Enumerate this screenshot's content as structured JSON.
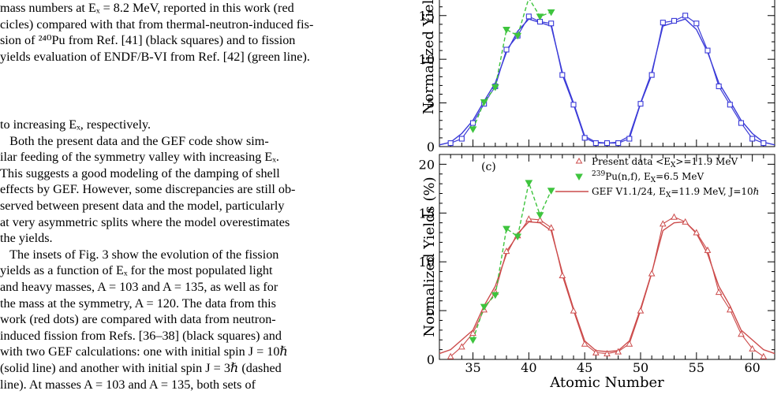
{
  "caption_lines": [
    "mass numbers at Eₓ = 8.2 MeV, reported in this work (red",
    "cicles) compared with that from thermal-neutron-induced fis-",
    "sion of ²⁴⁰Pu from Ref. [41] (black squares) and to fission",
    "yields evaluation of ENDF/B-VI from Ref. [42] (green line)."
  ],
  "body_lines": [
    "to increasing Eₓ, respectively.",
    "   Both the present data and the GEF code show sim-",
    "ilar feeding of the symmetry valley with increasing Eₓ.",
    "This suggests a good modeling of the damping of shell",
    "effects by GEF. However, some discrepancies are still ob-",
    "served between present data and the model, particularly",
    "at very asymmetric splits where the model overestimates",
    "the yields.",
    "   The insets of Fig. 3 show the evolution of the fission",
    "yields as a function of Eₓ for the most populated light",
    "and heavy masses, A = 103 and A = 135, as well as for",
    "the mass at the symmetry, A = 120. The data from this",
    "work (red dots) are compared with data from neutron-",
    "induced fission from Refs. [36–38] (black squares) and",
    "with two GEF calculations: one with initial spin J = 10ℏ",
    "(solid line) and another with initial spin J = 3ℏ (dashed",
    "line).   At masses A = 103 and A = 135, both sets of"
  ],
  "chart_data": [
    {
      "type": "line",
      "panel": "top (cropped)",
      "ylabel": "Normalized Yields",
      "xlim": [
        32,
        62
      ],
      "ylim": [
        0,
        15
      ],
      "yticks": [
        "0",
        "5",
        "10",
        "15"
      ],
      "colors": {
        "data": "#3b3bd8",
        "gef": "#3b3bd8",
        "ref": "#3ec43e"
      },
      "series": [
        {
          "style": "open-squares",
          "x": [
            33,
            34,
            35,
            36,
            37,
            38,
            39,
            40,
            41,
            42,
            43,
            44,
            45,
            46,
            47,
            48,
            49,
            50,
            51,
            52,
            53,
            54,
            55,
            56,
            57,
            58,
            59,
            60,
            61
          ],
          "values": [
            0.4,
            0.9,
            2.7,
            4.9,
            6.9,
            11.1,
            12.7,
            14.9,
            14.3,
            14.1,
            8.2,
            4.8,
            1.0,
            0.4,
            0.4,
            0.4,
            0.9,
            4.9,
            8.2,
            14.2,
            14.4,
            15.0,
            14.1,
            11.0,
            6.9,
            4.8,
            2.7,
            0.9,
            0.4
          ]
        },
        {
          "style": "solid-line",
          "x": [
            32,
            33,
            34,
            35,
            36,
            37,
            38,
            39,
            40,
            41,
            42,
            43,
            44,
            45,
            46,
            47,
            48,
            49,
            50,
            51,
            52,
            53,
            54,
            55,
            56,
            57,
            58,
            59,
            60,
            61,
            62
          ],
          "values": [
            0.2,
            0.5,
            1.5,
            3.0,
            5.2,
            7.3,
            10.8,
            13.2,
            14.6,
            14.2,
            13.8,
            8.5,
            5.0,
            1.2,
            0.5,
            0.4,
            0.5,
            1.2,
            5.0,
            8.5,
            13.8,
            14.2,
            14.6,
            13.4,
            10.8,
            7.3,
            5.2,
            3.0,
            1.5,
            0.5,
            0.2
          ]
        },
        {
          "style": "dashed-triangles",
          "x": [
            35,
            36,
            37,
            38,
            39,
            40,
            41,
            42
          ],
          "values": [
            2.0,
            5.1,
            6.8,
            13.4,
            12.7,
            17.0,
            14.9,
            15.4
          ]
        }
      ]
    },
    {
      "type": "line",
      "panel_label": "(c)",
      "xlabel": "Atomic Number",
      "ylabel": "Normalized Yields (%)",
      "xlim": [
        32,
        62
      ],
      "ylim": [
        0,
        21
      ],
      "xticks": [
        "35",
        "40",
        "45",
        "50",
        "55",
        "60"
      ],
      "yticks": [
        "0",
        "5",
        "10",
        "15",
        "20"
      ],
      "colors": {
        "data": "#cc4b4b",
        "gef": "#cc4b4b",
        "ref": "#3ec43e"
      },
      "legend": [
        {
          "label": "Present data <E",
          "sub": "X",
          "label2": ">=11.9 MeV",
          "marker": "open-triangle"
        },
        {
          "sup": "239",
          "label": "Pu(n,f), E",
          "sub": "X",
          "label2": "=6.5 MeV",
          "marker": "filled-triangle-down"
        },
        {
          "label": "GEF V1.1/24, E",
          "sub": "X",
          "label2": "=11.9 MeV, J=10ℏ",
          "marker": "line"
        }
      ],
      "series": [
        {
          "name": "Present data <EX>=11.9 MeV",
          "style": "open-triangles",
          "x": [
            33,
            34,
            35,
            36,
            37,
            38,
            39,
            40,
            41,
            42,
            43,
            44,
            45,
            46,
            47,
            48,
            49,
            50,
            51,
            52,
            53,
            54,
            55,
            56,
            57,
            58,
            59,
            60,
            61
          ],
          "values": [
            0.3,
            1.3,
            2.7,
            5.1,
            6.9,
            11.1,
            12.7,
            14.4,
            14.3,
            13.5,
            8.6,
            5.0,
            1.6,
            0.7,
            0.6,
            0.8,
            1.6,
            5.0,
            8.8,
            13.9,
            14.6,
            14.1,
            13.0,
            11.2,
            6.9,
            5.1,
            2.6,
            1.1,
            0.3
          ]
        },
        {
          "name": "239Pu(n,f), EX=6.5 MeV",
          "style": "dashed-triangles-down",
          "x": [
            35,
            36,
            37,
            38,
            39,
            40,
            41,
            42
          ],
          "values": [
            2.0,
            5.4,
            6.6,
            13.4,
            12.6,
            18.1,
            14.8,
            17.3
          ]
        },
        {
          "name": "GEF V1.1/24, EX=11.9 MeV, J=10ℏ",
          "style": "solid-line",
          "x": [
            32,
            33,
            34,
            35,
            36,
            37,
            38,
            39,
            40,
            41,
            42,
            43,
            44,
            45,
            46,
            47,
            48,
            49,
            50,
            51,
            52,
            53,
            54,
            55,
            56,
            57,
            58,
            59,
            60,
            61,
            62
          ],
          "values": [
            0.6,
            1.0,
            2.0,
            3.0,
            5.5,
            7.5,
            10.8,
            12.9,
            14.1,
            14.0,
            13.2,
            8.9,
            5.2,
            1.9,
            0.9,
            0.8,
            0.9,
            1.9,
            5.2,
            8.9,
            13.2,
            14.0,
            14.1,
            12.9,
            10.8,
            7.5,
            5.5,
            3.0,
            2.0,
            1.0,
            0.6
          ]
        }
      ]
    }
  ]
}
